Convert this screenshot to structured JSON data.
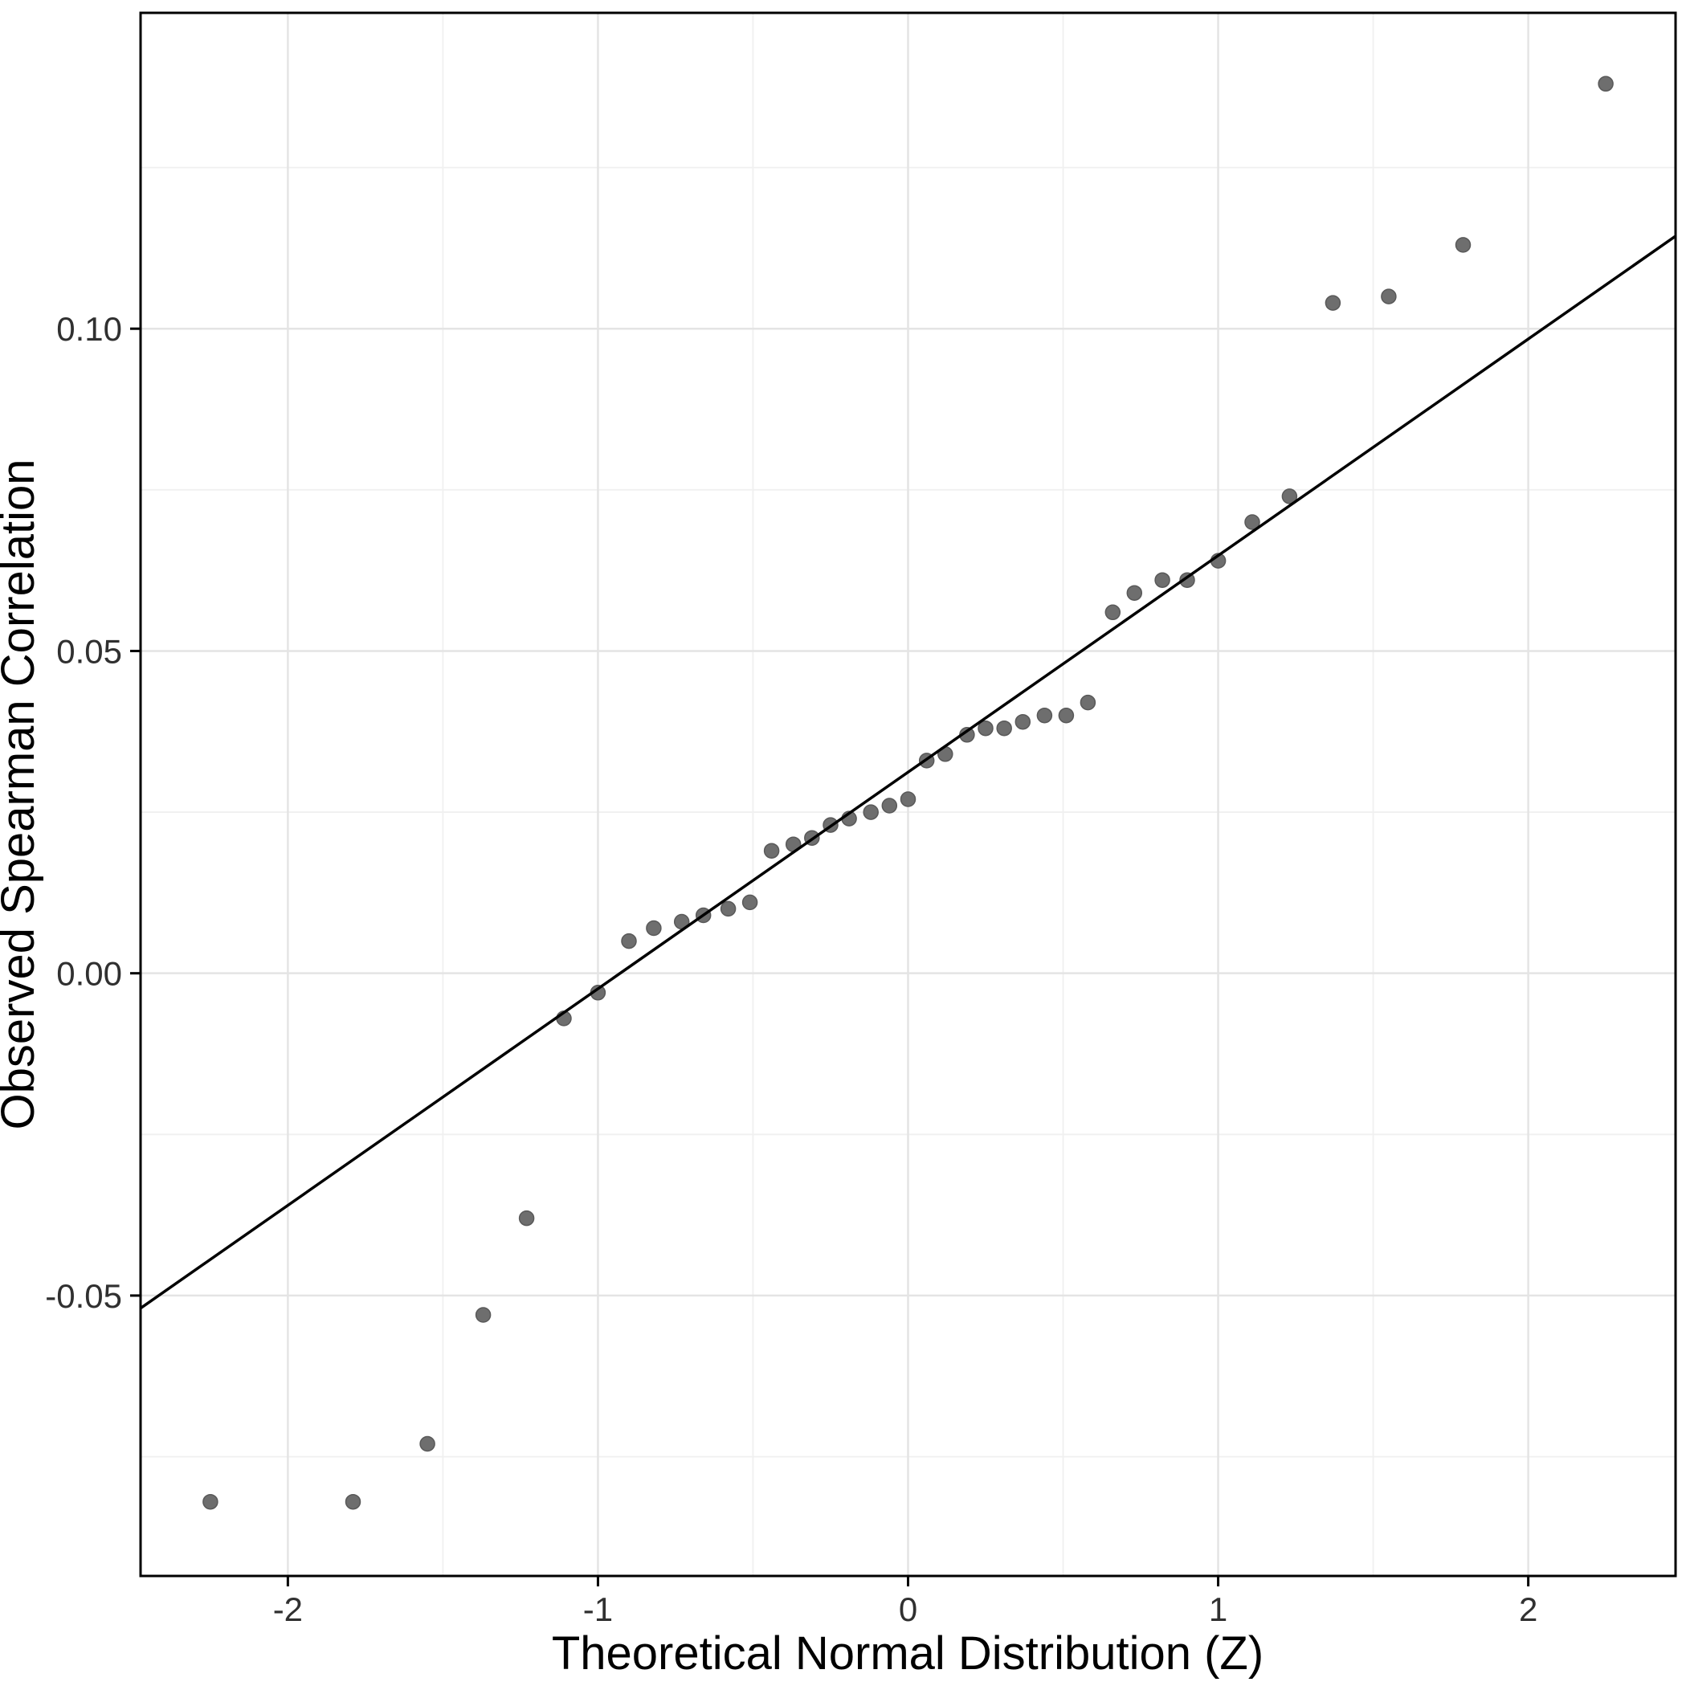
{
  "chart_data": {
    "type": "scatter",
    "title": "",
    "xlabel": "Theoretical Normal Distribution (Z)",
    "ylabel": "Observed Spearman Correlation",
    "xlim": [
      -2.475,
      2.475
    ],
    "ylim": [
      -0.0935,
      0.149
    ],
    "grid": true,
    "legend": "none",
    "x_ticks": {
      "values": [
        -2,
        -1,
        0,
        1,
        2
      ],
      "labels": [
        "-2",
        "-1",
        "0",
        "1",
        "2"
      ]
    },
    "y_ticks": {
      "values": [
        0.1,
        0.05,
        0.0,
        -0.05
      ],
      "labels": [
        "0.10",
        "0.05",
        "0.00",
        "-0.05"
      ]
    },
    "x_minor": [
      -1.5,
      -0.5,
      0.5,
      1.5
    ],
    "y_minor": [
      0.125,
      0.075,
      0.025,
      -0.025,
      -0.075
    ],
    "points": [
      [
        -2.25,
        -0.082
      ],
      [
        -1.79,
        -0.082
      ],
      [
        -1.55,
        -0.073
      ],
      [
        -1.37,
        -0.053
      ],
      [
        -1.23,
        -0.038
      ],
      [
        -1.11,
        -0.007
      ],
      [
        -1.0,
        -0.003
      ],
      [
        -0.9,
        0.005
      ],
      [
        -0.82,
        0.007
      ],
      [
        -0.73,
        0.008
      ],
      [
        -0.66,
        0.009
      ],
      [
        -0.58,
        0.01
      ],
      [
        -0.51,
        0.011
      ],
      [
        -0.44,
        0.019
      ],
      [
        -0.37,
        0.02
      ],
      [
        -0.31,
        0.021
      ],
      [
        -0.25,
        0.023
      ],
      [
        -0.19,
        0.024
      ],
      [
        -0.12,
        0.025
      ],
      [
        -0.06,
        0.026
      ],
      [
        0.0,
        0.027
      ],
      [
        0.06,
        0.033
      ],
      [
        0.12,
        0.034
      ],
      [
        0.19,
        0.037
      ],
      [
        0.25,
        0.038
      ],
      [
        0.31,
        0.038
      ],
      [
        0.37,
        0.039
      ],
      [
        0.44,
        0.04
      ],
      [
        0.51,
        0.04
      ],
      [
        0.58,
        0.042
      ],
      [
        0.66,
        0.056
      ],
      [
        0.73,
        0.059
      ],
      [
        0.82,
        0.061
      ],
      [
        0.9,
        0.061
      ],
      [
        1.0,
        0.064
      ],
      [
        1.11,
        0.07
      ],
      [
        1.23,
        0.074
      ],
      [
        1.37,
        0.104
      ],
      [
        1.55,
        0.105
      ],
      [
        1.79,
        0.113
      ],
      [
        2.25,
        0.138
      ]
    ],
    "reference_line": {
      "slope": 0.0336,
      "intercept": 0.0312
    },
    "colors": {
      "point": "#6e6e6e",
      "point_stroke": "#595959",
      "line": "#000000",
      "grid_major": "#e4e4e4",
      "grid_minor": "#f0f0f0",
      "panel_border": "#000000",
      "background": "#ffffff",
      "tick_label": "#303030",
      "axis_title": "#000000"
    }
  }
}
